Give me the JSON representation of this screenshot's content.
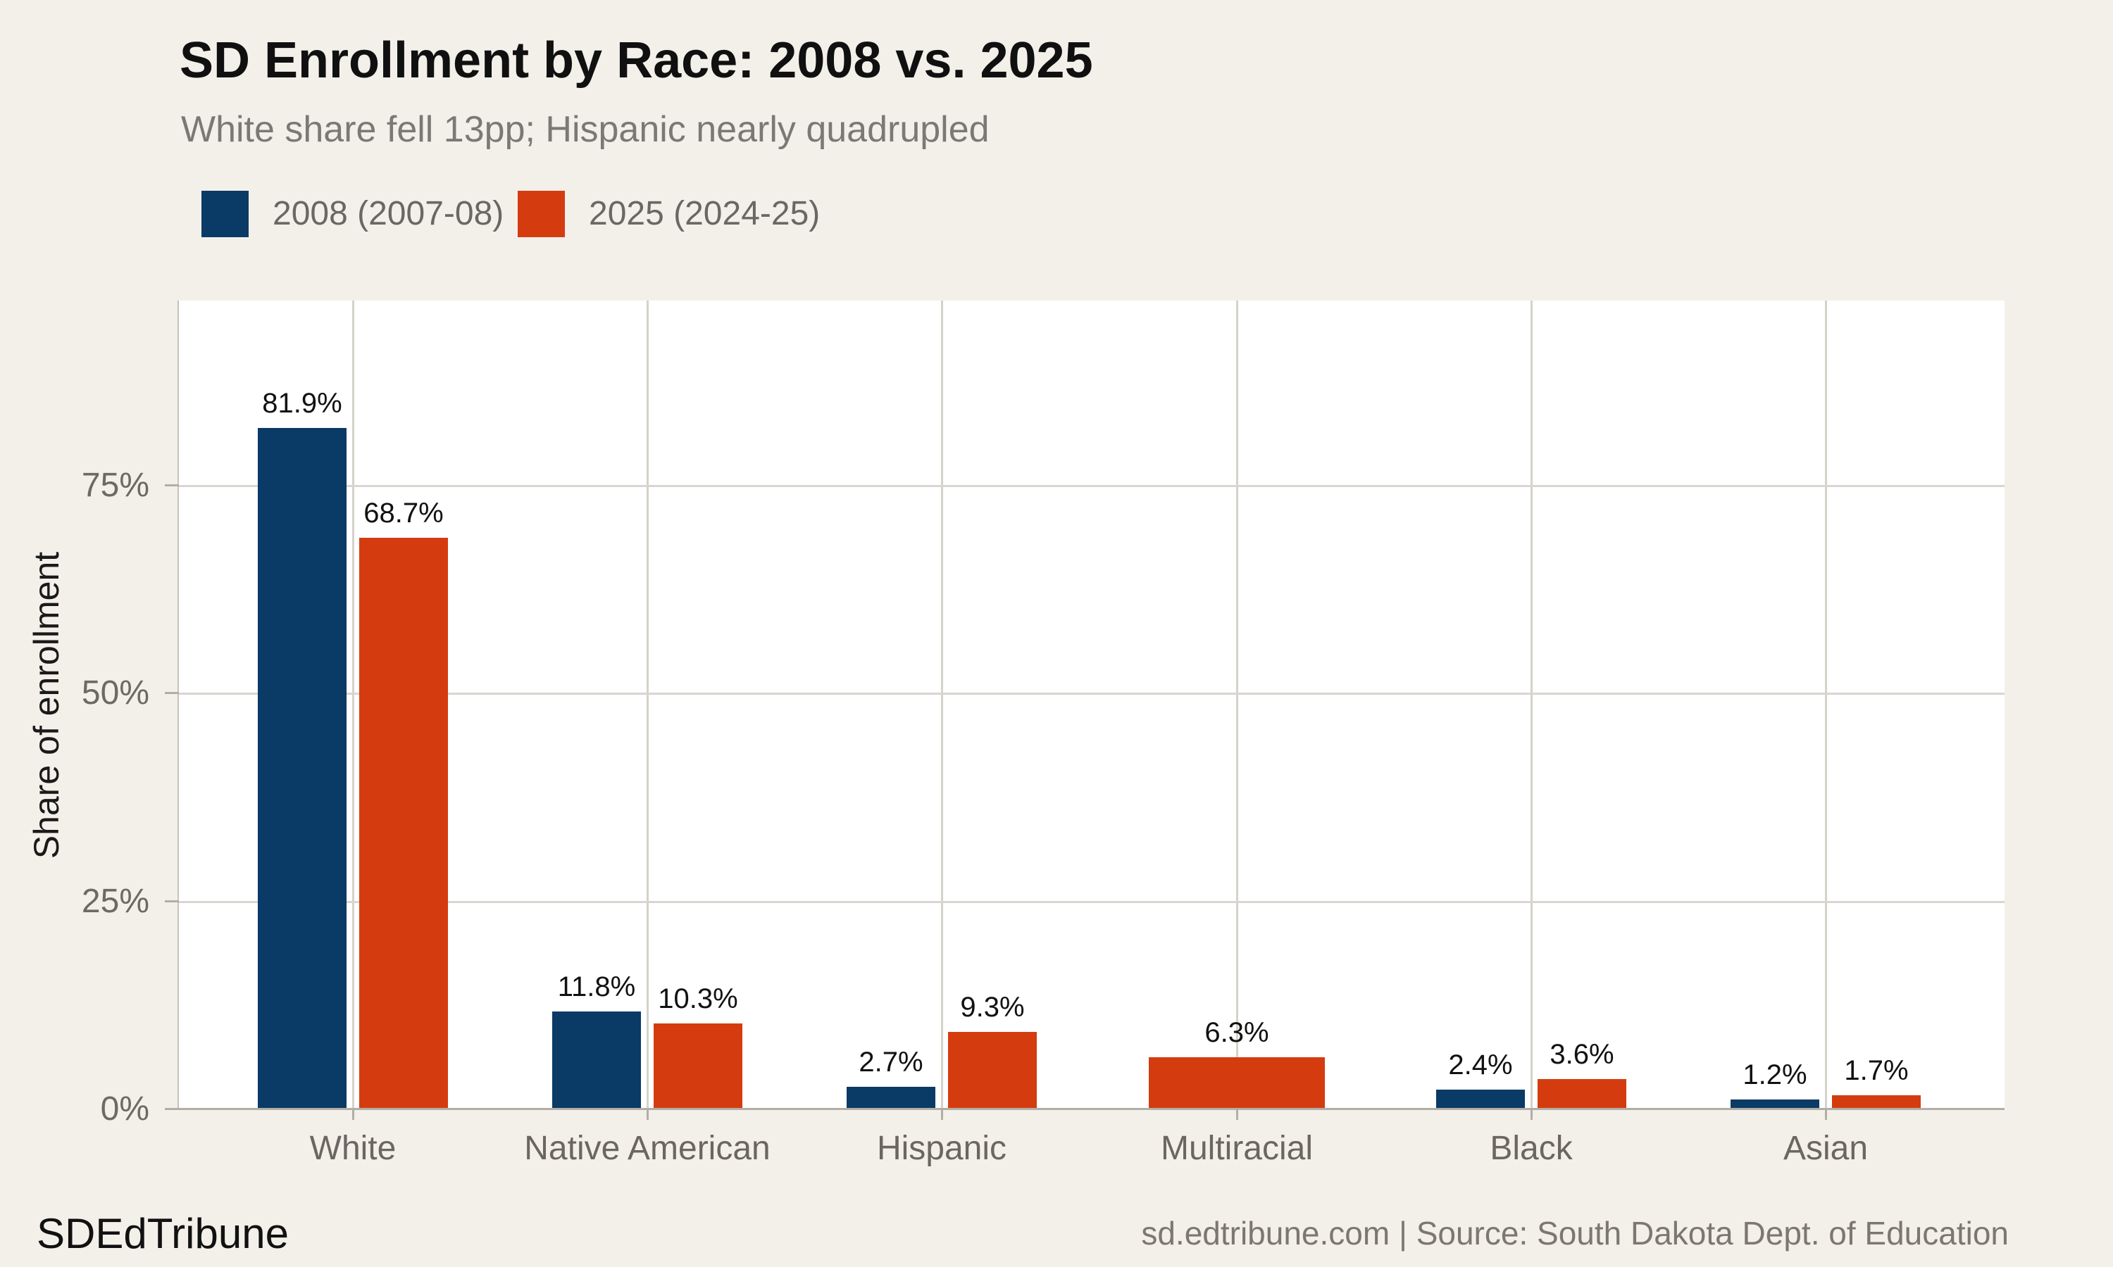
{
  "page": {
    "background": "#f3f0ea",
    "panel_background": "#ffffff"
  },
  "header": {
    "title": "SD Enrollment by Race: 2008 vs. 2025",
    "subtitle": "White share fell 13pp; Hispanic nearly quadrupled"
  },
  "legend": {
    "items": [
      {
        "label": "2008 (2007-08)",
        "color": "#0a3a66"
      },
      {
        "label": "2025 (2024-25)",
        "color": "#d43c10"
      }
    ]
  },
  "chart_data": {
    "type": "bar",
    "title": "SD Enrollment by Race: 2008 vs. 2025",
    "subtitle": "White share fell 13pp; Hispanic nearly quadrupled",
    "categories": [
      "White",
      "Native American",
      "Hispanic",
      "Multiracial",
      "Black",
      "Asian"
    ],
    "series": [
      {
        "name": "2008 (2007-08)",
        "color": "#0a3a66",
        "values": [
          81.9,
          11.8,
          2.7,
          null,
          2.4,
          1.2
        ],
        "labels": [
          "81.9%",
          "11.8%",
          "2.7%",
          null,
          "2.4%",
          "1.2%"
        ]
      },
      {
        "name": "2025 (2024-25)",
        "color": "#d43c10",
        "values": [
          68.7,
          10.3,
          9.3,
          6.3,
          3.6,
          1.7
        ],
        "labels": [
          "68.7%",
          "10.3%",
          "9.3%",
          "6.3%",
          "3.6%",
          "1.7%"
        ]
      }
    ],
    "ylabel": "Share of enrollment",
    "xlabel": "",
    "yticks": [
      0,
      25,
      50,
      75
    ],
    "ytick_labels": [
      "0%",
      "25%",
      "50%%",
      "75%"
    ],
    "ylim": [
      0,
      97
    ],
    "grid": true,
    "legend_position": "top-left",
    "gridline_color": "#d9d6cf",
    "axis_color": "#b2aea5"
  },
  "footer": {
    "brand": "SDEdTribune",
    "source": "sd.edtribune.com | Source: South Dakota Dept. of Education"
  }
}
